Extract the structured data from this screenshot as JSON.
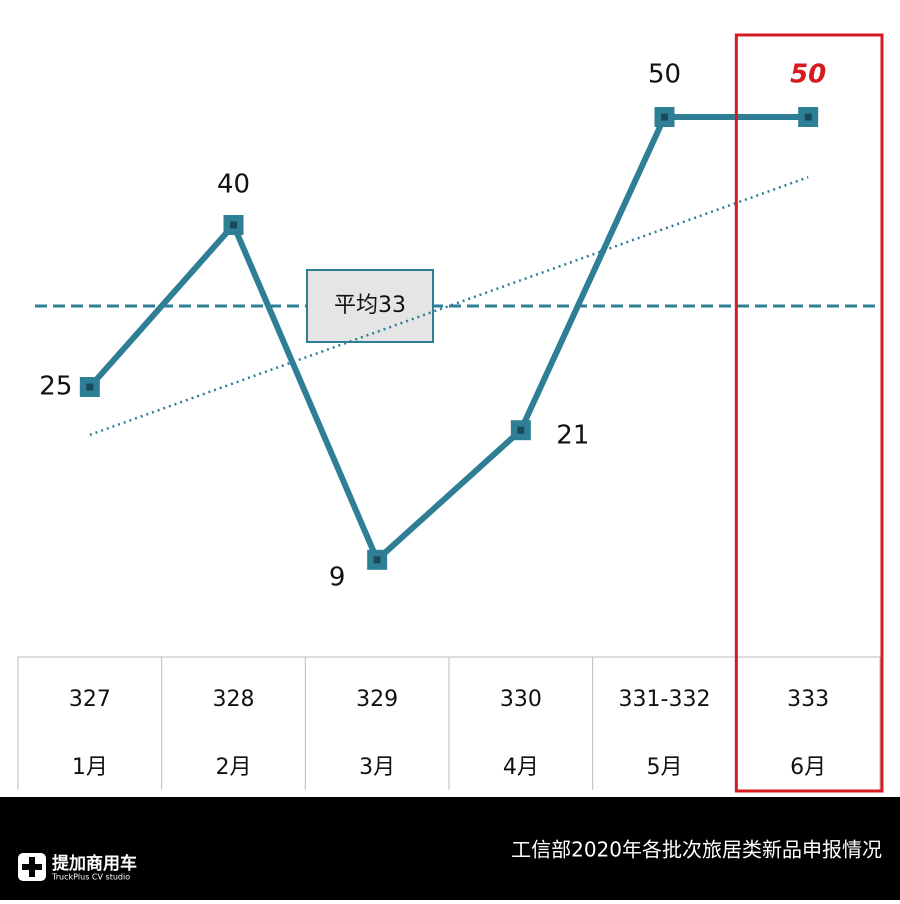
{
  "chart_data": {
    "type": "line",
    "categories": [
      "327",
      "328",
      "329",
      "330",
      "331-332",
      "333"
    ],
    "months": [
      "1月",
      "2月",
      "3月",
      "4月",
      "5月",
      "6月"
    ],
    "series": [
      {
        "color": "#2e7f96",
        "values": [
          25,
          40,
          9,
          21,
          50,
          50
        ]
      }
    ],
    "average": {
      "value": 32.5,
      "label": "平均33"
    },
    "ylim": [
      0,
      60
    ],
    "trendline": true,
    "highlight_color": "#d71920"
  },
  "footer": {
    "title": "工信部2020年各批次旅居类新品申报情况",
    "logo": "提加商用车",
    "logo_sub": "TruckPlus CV studio"
  }
}
